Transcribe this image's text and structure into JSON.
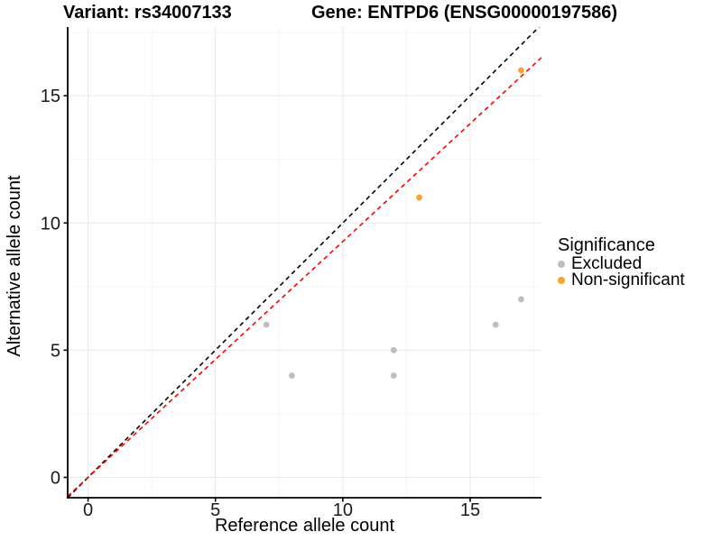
{
  "chart_data": {
    "type": "scatter",
    "title_variant": "Variant: rs34007133",
    "title_gene": "Gene: ENTPD6 (ENSG00000197586)",
    "xlabel": "Reference allele count",
    "ylabel": "Alternative allele count",
    "xlim": [
      -0.8,
      17.8
    ],
    "ylim": [
      -0.8,
      17.7
    ],
    "x_ticks": [
      0,
      5,
      10,
      15
    ],
    "y_ticks": [
      0,
      5,
      10,
      15
    ],
    "x_minor_ticks": [
      2.5,
      7.5,
      12.5,
      17.5
    ],
    "y_minor_ticks": [
      2.5,
      7.5,
      12.5,
      17.5
    ],
    "grid": true,
    "legend": {
      "title": "Significance",
      "position": "right"
    },
    "series": [
      {
        "name": "Excluded",
        "color": "#BEBEBE",
        "points": [
          [
            7,
            6
          ],
          [
            8,
            4
          ],
          [
            12,
            4
          ],
          [
            12,
            5
          ],
          [
            16,
            6
          ],
          [
            17,
            7
          ]
        ]
      },
      {
        "name": "Non-significant",
        "color": "#F7A42D",
        "points": [
          [
            13,
            11
          ],
          [
            17,
            16
          ]
        ]
      }
    ],
    "reference_lines": [
      {
        "name": "identity",
        "slope": 1,
        "intercept": 0,
        "color": "#000000",
        "style": "dashed"
      },
      {
        "name": "expected-ratio",
        "slope": 0.927,
        "intercept": 0,
        "color": "#FF0000",
        "style": "dashed"
      }
    ],
    "colors": {
      "grid_major": "#EBEBEB",
      "grid_minor": "#F5F5F5",
      "axis": "#000000",
      "tick_text": "#1A1A1A"
    }
  }
}
